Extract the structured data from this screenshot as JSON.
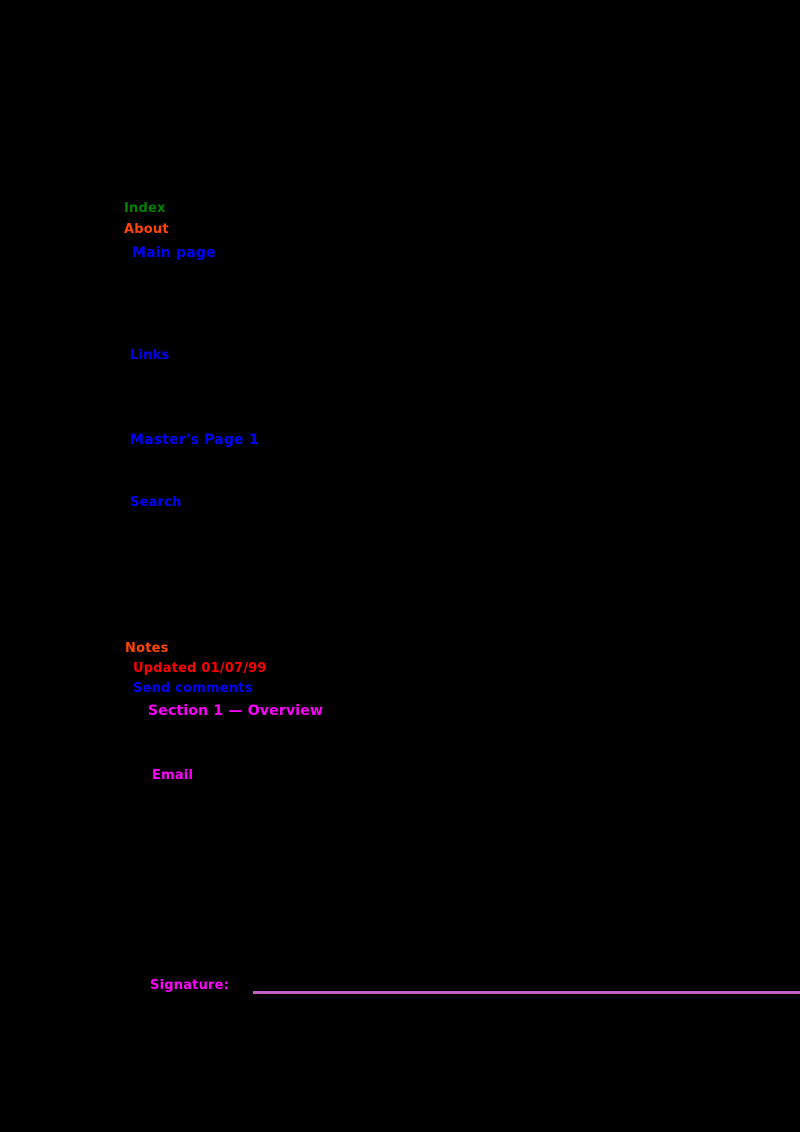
{
  "page": {
    "background": "#000000"
  },
  "colors": {
    "green": "#008000",
    "orange": "#FF4500",
    "blue": "#0000FF",
    "red": "#FF0000",
    "magenta": "#FF00FF",
    "rule_purple": "#C060C0"
  },
  "items": {
    "green_heading": {
      "text": "Index",
      "color": "#008000"
    },
    "orange_heading": {
      "text": "About",
      "color": "#FF4500"
    },
    "link_main": {
      "text": "Main page",
      "color": "#0000FF"
    },
    "link_links": {
      "text": "Links",
      "color": "#0000FF"
    },
    "link_masters": {
      "text": "Master's Page 1",
      "color": "#0000FF"
    },
    "link_search": {
      "text": "Search",
      "color": "#0000FF"
    },
    "orange_subheading": {
      "text": "Notes",
      "color": "#FF4500"
    },
    "red_updated": {
      "text": "Updated 01/07/99",
      "color": "#FF0000"
    },
    "link_comments": {
      "text": "Send comments",
      "color": "#0000FF"
    },
    "visited_section": {
      "text": "Section 1 — Overview",
      "color": "#FF00FF"
    },
    "visited_email": {
      "text": "Email",
      "color": "#FF00FF"
    },
    "visited_signature": {
      "text": "Signature:",
      "color": "#FF00FF"
    }
  },
  "rule": {
    "color": "#C060C0"
  }
}
